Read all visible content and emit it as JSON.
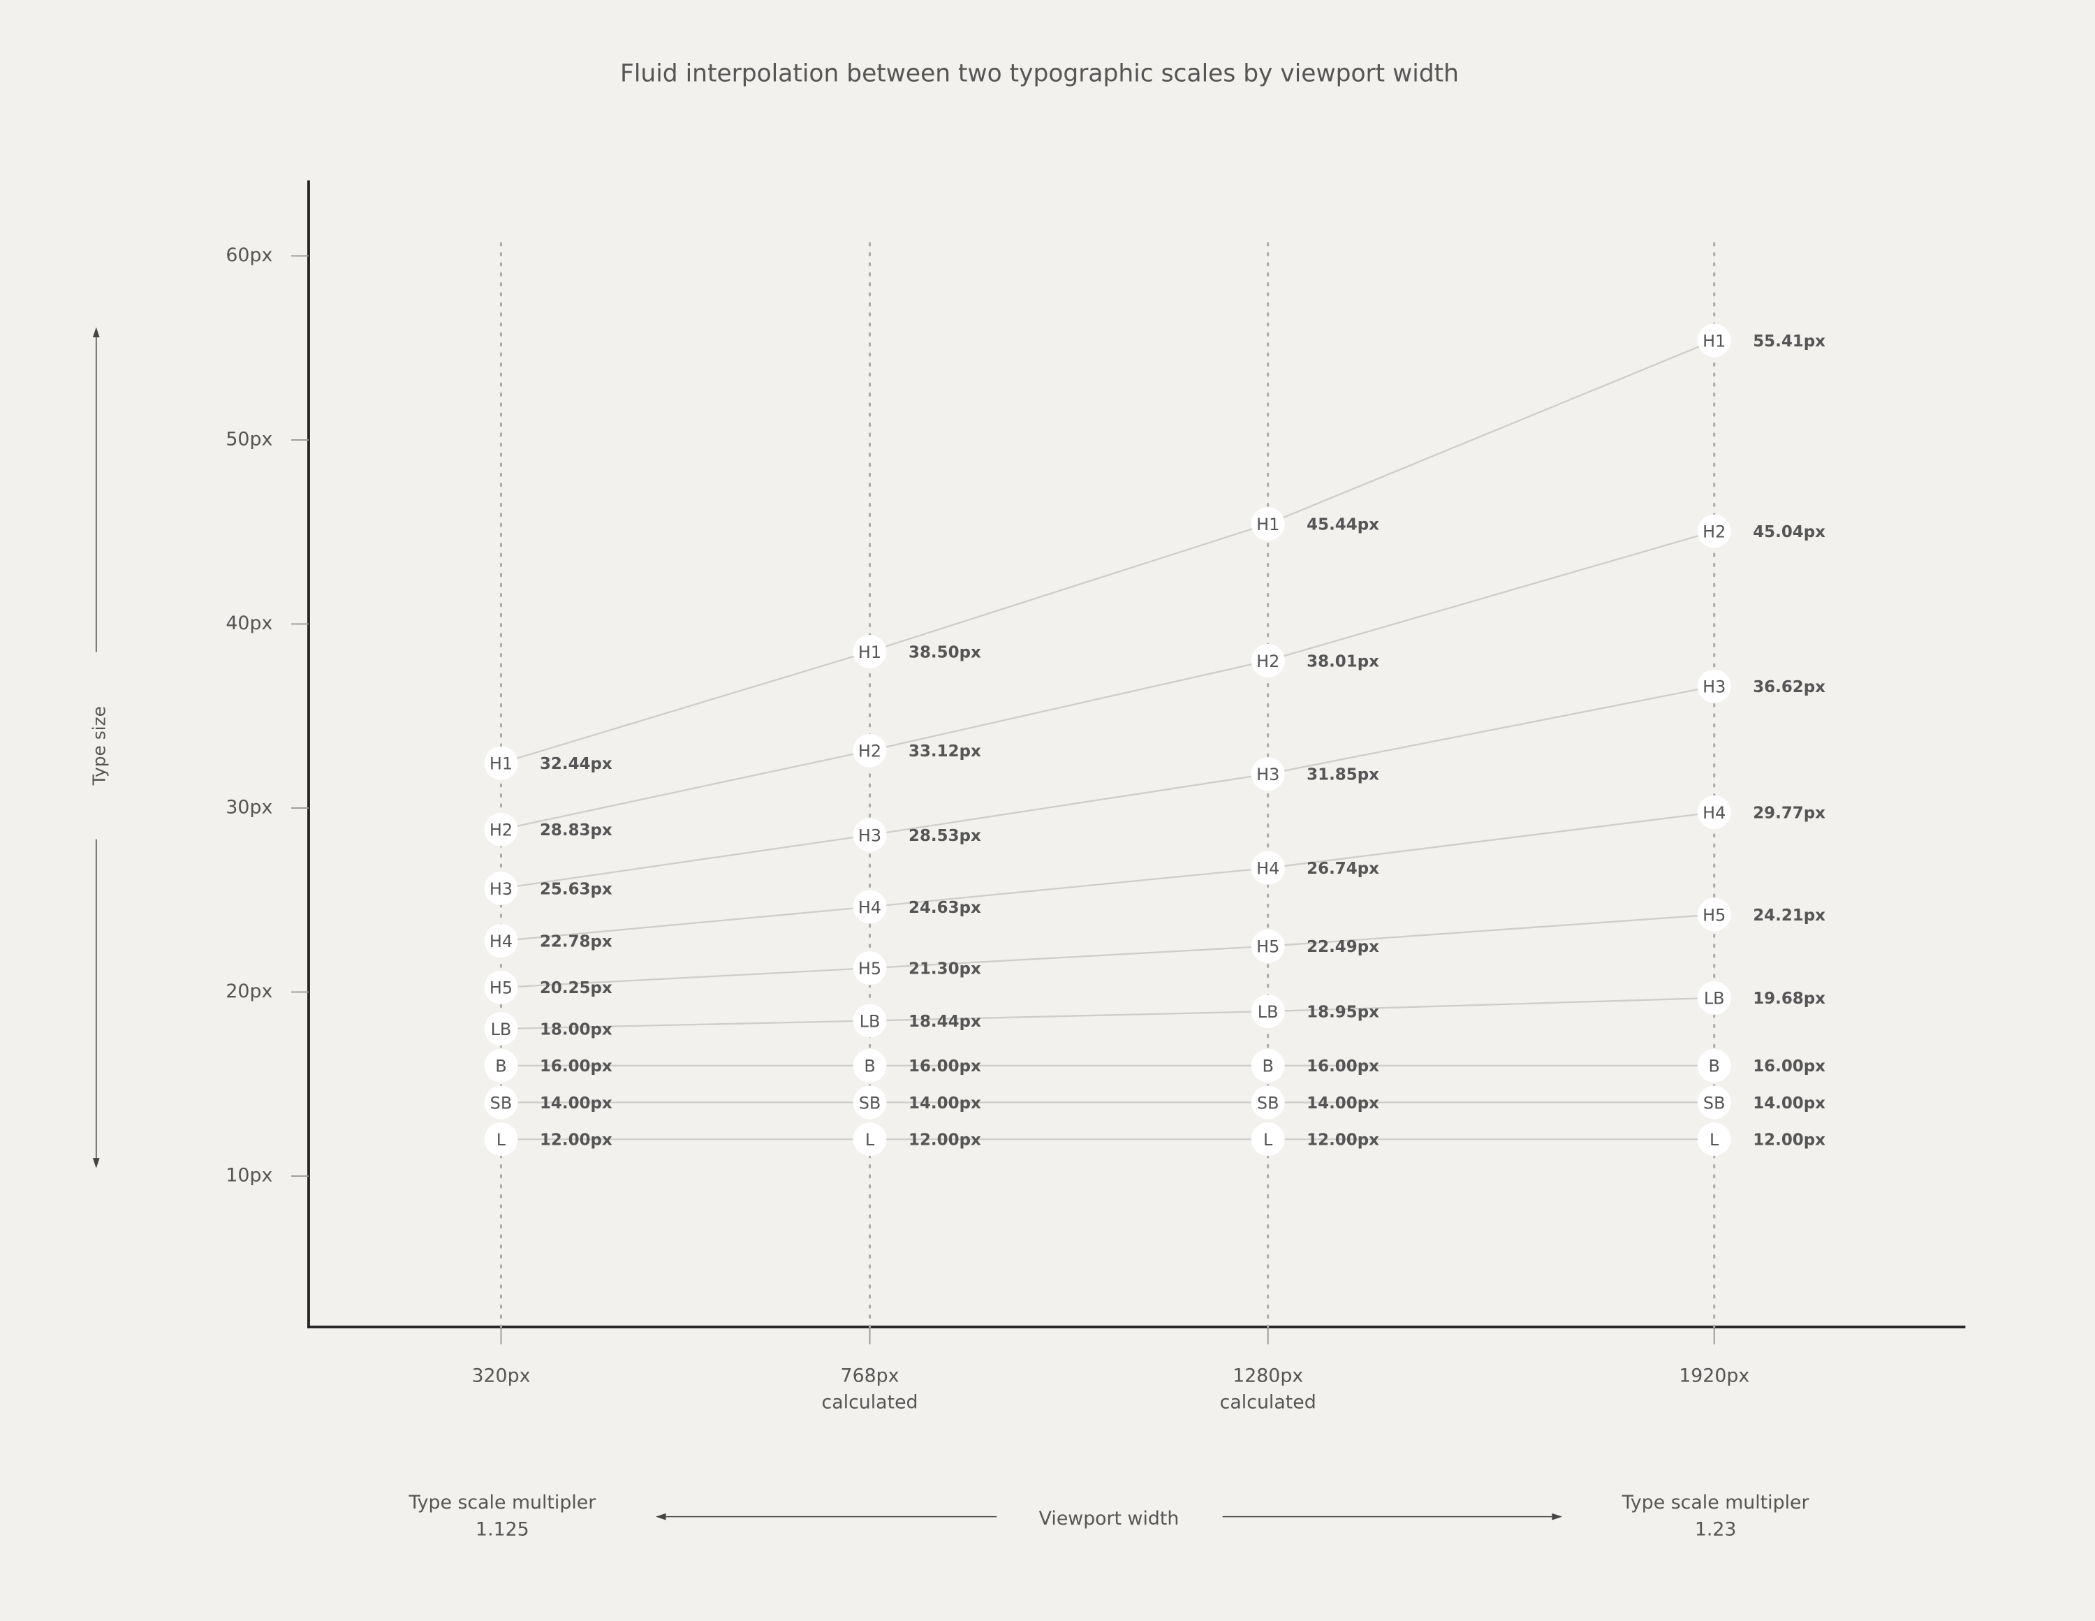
{
  "chart_data": {
    "type": "line",
    "title": "Fluid interpolation between two typographic scales by viewport width",
    "y_label": "Type size",
    "x_label": "Viewport width",
    "categories": [
      "320px",
      "768px",
      "1280px",
      "1920px"
    ],
    "category_notes": [
      null,
      "calculated",
      "calculated",
      null
    ],
    "scale_left": {
      "label": "Type scale multipler",
      "value": 1.125
    },
    "scale_right": {
      "label": "Type scale multipler",
      "value": 1.23
    },
    "ylim": [
      1.8,
      64.1
    ],
    "yticks": [
      {
        "value": 10,
        "label": "10px"
      },
      {
        "value": 20,
        "label": "20px"
      },
      {
        "value": 30,
        "label": "30px"
      },
      {
        "value": 40,
        "label": "40px"
      },
      {
        "value": 50,
        "label": "50px"
      },
      {
        "value": 60,
        "label": "60px"
      }
    ],
    "line_color": "#cfcdc9",
    "series": [
      {
        "name": "H1",
        "values": [
          32.44,
          38.5,
          45.44,
          55.41
        ],
        "value_labels": [
          "32.44px",
          "38.50px",
          "45.44px",
          "55.41px"
        ]
      },
      {
        "name": "H2",
        "values": [
          28.83,
          33.12,
          38.01,
          45.04
        ],
        "value_labels": [
          "28.83px",
          "33.12px",
          "38.01px",
          "45.04px"
        ]
      },
      {
        "name": "H3",
        "values": [
          25.63,
          28.53,
          31.85,
          36.62
        ],
        "value_labels": [
          "25.63px",
          "28.53px",
          "31.85px",
          "36.62px"
        ]
      },
      {
        "name": "H4",
        "values": [
          22.78,
          24.63,
          26.74,
          29.77
        ],
        "value_labels": [
          "22.78px",
          "24.63px",
          "26.74px",
          "29.77px"
        ]
      },
      {
        "name": "H5",
        "values": [
          20.25,
          21.3,
          22.49,
          24.21
        ],
        "value_labels": [
          "20.25px",
          "21.30px",
          "22.49px",
          "24.21px"
        ]
      },
      {
        "name": "LB",
        "values": [
          18,
          18.44,
          18.95,
          19.68
        ],
        "value_labels": [
          "18.00px",
          "18.44px",
          "18.95px",
          "19.68px"
        ]
      },
      {
        "name": "B",
        "values": [
          16,
          16,
          16,
          16
        ],
        "value_labels": [
          "16.00px",
          "16.00px",
          "16.00px",
          "16.00px"
        ]
      },
      {
        "name": "SB",
        "values": [
          14,
          14,
          14,
          14
        ],
        "value_labels": [
          "14.00px",
          "14.00px",
          "14.00px",
          "14.00px"
        ]
      },
      {
        "name": "L",
        "values": [
          12,
          12,
          12,
          12
        ],
        "value_labels": [
          "12.00px",
          "12.00px",
          "12.00px",
          "12.00px"
        ]
      }
    ]
  }
}
